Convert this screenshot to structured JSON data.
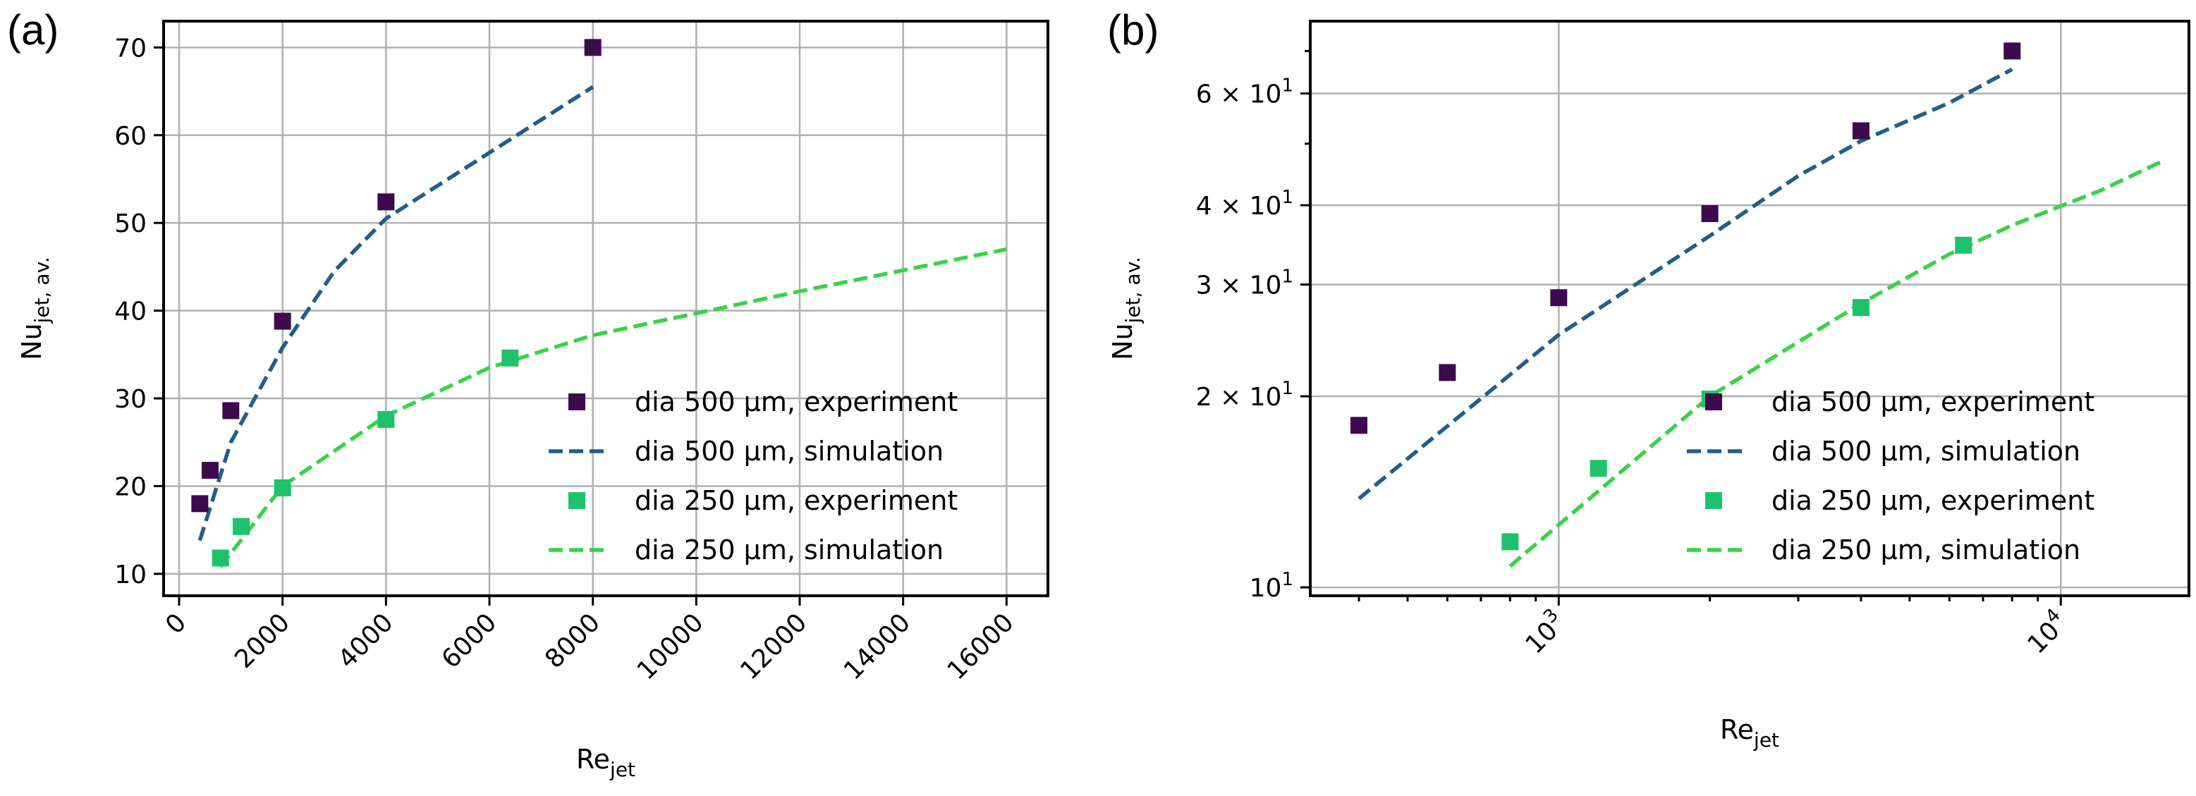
{
  "chart_data": [
    {
      "type": "scatter",
      "panel_label": "(a)",
      "xscale": "linear",
      "yscale": "linear",
      "xlim": [
        -300,
        16800
      ],
      "ylim": [
        7.5,
        73
      ],
      "xticks": [
        0,
        2000,
        4000,
        6000,
        8000,
        10000,
        12000,
        14000,
        16000
      ],
      "xtick_labels": [
        "0",
        "2000",
        "4000",
        "6000",
        "8000",
        "10000",
        "12000",
        "14000",
        "16000"
      ],
      "yticks": [
        10,
        20,
        30,
        40,
        50,
        60,
        70
      ],
      "ytick_labels": [
        "10",
        "20",
        "30",
        "40",
        "50",
        "60",
        "70"
      ],
      "xlabel": {
        "main": "Re",
        "sub": "jet"
      },
      "ylabel": {
        "main": "Nu",
        "sub": "jet, av."
      },
      "grid": true,
      "legend_position": "lower-right",
      "series": [
        {
          "name": "dia 500 µm, experiment",
          "kind": "marker",
          "color": "#3d0a4e",
          "x": [
            400,
            600,
            1000,
            2000,
            4000,
            8000
          ],
          "y": [
            18.0,
            21.8,
            28.6,
            38.8,
            52.4,
            70.0
          ]
        },
        {
          "name": "dia 500 µm, simulation",
          "kind": "dashed",
          "color": "#1f5f8b",
          "x": [
            400,
            1000,
            2000,
            3000,
            4000,
            6000,
            8000
          ],
          "y": [
            13.8,
            25.0,
            35.8,
            44.5,
            50.5,
            58.0,
            65.5
          ]
        },
        {
          "name": "dia 250 µm, experiment",
          "kind": "marker",
          "color": "#1ec26b",
          "x": [
            800,
            1200,
            2000,
            4000,
            6400
          ],
          "y": [
            11.8,
            15.4,
            19.8,
            27.6,
            34.6
          ]
        },
        {
          "name": "dia 250 µm, simulation",
          "kind": "dashed",
          "color": "#37d445",
          "x": [
            800,
            2000,
            4000,
            6000,
            8000,
            12000,
            16000
          ],
          "y": [
            10.8,
            20.0,
            28.0,
            33.5,
            37.2,
            42.2,
            47.0
          ]
        }
      ]
    },
    {
      "type": "scatter",
      "panel_label": "(b)",
      "xscale": "log",
      "yscale": "log",
      "xlim": [
        320,
        18000
      ],
      "ylim": [
        9.7,
        78
      ],
      "xticks": [
        1000,
        10000
      ],
      "xtick_labels": [
        {
          "base": "10",
          "exp": "3"
        },
        {
          "base": "10",
          "exp": "4"
        }
      ],
      "x_minor_ticks": [
        400,
        500,
        600,
        700,
        800,
        900,
        2000,
        3000,
        4000,
        5000,
        6000,
        7000,
        8000,
        9000
      ],
      "yticks": [
        10,
        20,
        30,
        40,
        60
      ],
      "ytick_labels": [
        {
          "base": "10",
          "exp": "1"
        },
        {
          "base": "2 × 10",
          "exp": "1"
        },
        {
          "base": "3 × 10",
          "exp": "1"
        },
        {
          "base": "4 × 10",
          "exp": "1"
        },
        {
          "base": "6 × 10",
          "exp": "1"
        }
      ],
      "y_minor_ticks": [
        50,
        70
      ],
      "xlabel": {
        "main": "Re",
        "sub": "jet"
      },
      "ylabel": {
        "main": "Nu",
        "sub": "jet, av."
      },
      "grid": true,
      "legend_position": "lower-right",
      "series": [
        {
          "name": "dia 500 µm, experiment",
          "kind": "marker",
          "color": "#3d0a4e",
          "x": [
            400,
            600,
            1000,
            2000,
            4000,
            8000
          ],
          "y": [
            18.0,
            21.8,
            28.6,
            38.8,
            52.4,
            70.0
          ]
        },
        {
          "name": "dia 500 µm, simulation",
          "kind": "dashed",
          "color": "#1f5f8b",
          "x": [
            400,
            1000,
            2000,
            3000,
            4000,
            6000,
            8000
          ],
          "y": [
            13.8,
            25.0,
            35.8,
            44.5,
            50.5,
            58.0,
            65.5
          ]
        },
        {
          "name": "dia 250 µm, experiment",
          "kind": "marker",
          "color": "#1ec26b",
          "x": [
            800,
            1200,
            2000,
            4000,
            6400
          ],
          "y": [
            11.8,
            15.4,
            19.8,
            27.6,
            34.6
          ]
        },
        {
          "name": "dia 250 µm, simulation",
          "kind": "dashed",
          "color": "#37d445",
          "x": [
            800,
            2000,
            4000,
            6000,
            8000,
            12000,
            16000
          ],
          "y": [
            10.8,
            20.0,
            28.0,
            33.5,
            37.2,
            42.2,
            47.0
          ]
        }
      ]
    }
  ]
}
